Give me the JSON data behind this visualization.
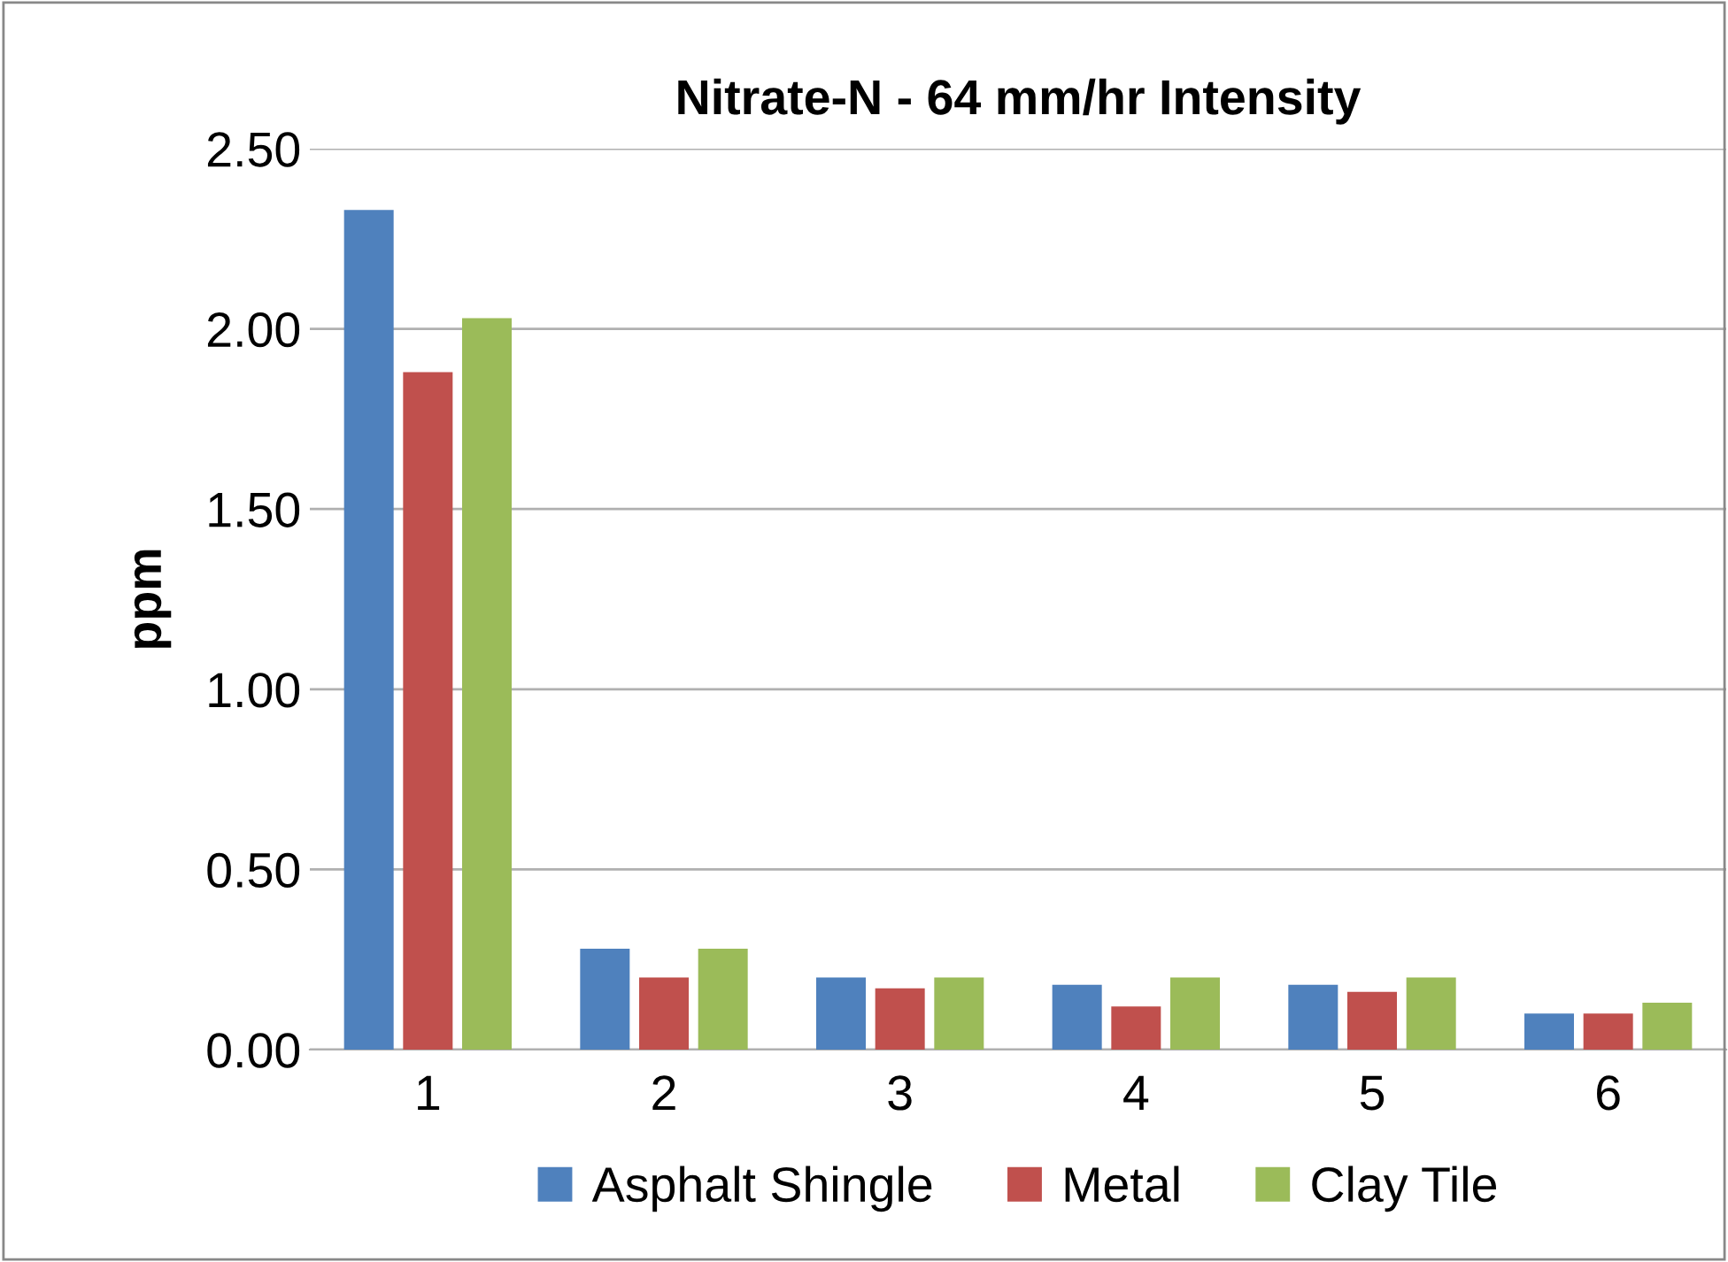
{
  "chart_data": {
    "type": "bar",
    "title": "Nitrate-N - 64 mm/hr Intensity",
    "ylabel": "ppm",
    "categories": [
      "1",
      "2",
      "3",
      "4",
      "5",
      "6"
    ],
    "series": [
      {
        "name": "Asphalt Shingle",
        "color": "#4f81bd",
        "values": [
          2.33,
          0.28,
          0.2,
          0.18,
          0.18,
          0.1
        ]
      },
      {
        "name": "Metal",
        "color": "#c0504d",
        "values": [
          1.88,
          0.2,
          0.17,
          0.12,
          0.16,
          0.1
        ]
      },
      {
        "name": "Clay Tile",
        "color": "#9bbb59",
        "values": [
          2.03,
          0.28,
          0.2,
          0.2,
          0.2,
          0.13
        ]
      }
    ],
    "ylim": [
      0,
      2.5
    ],
    "yticks": [
      {
        "value": 0,
        "label": "0.00"
      },
      {
        "value": 0.5,
        "label": "0.50"
      },
      {
        "value": 1,
        "label": "1.00"
      },
      {
        "value": 1.5,
        "label": "1.50"
      },
      {
        "value": 2,
        "label": "2.00"
      },
      {
        "value": 2.5,
        "label": "2.50"
      }
    ],
    "grid": "y",
    "legend": "bottom"
  }
}
